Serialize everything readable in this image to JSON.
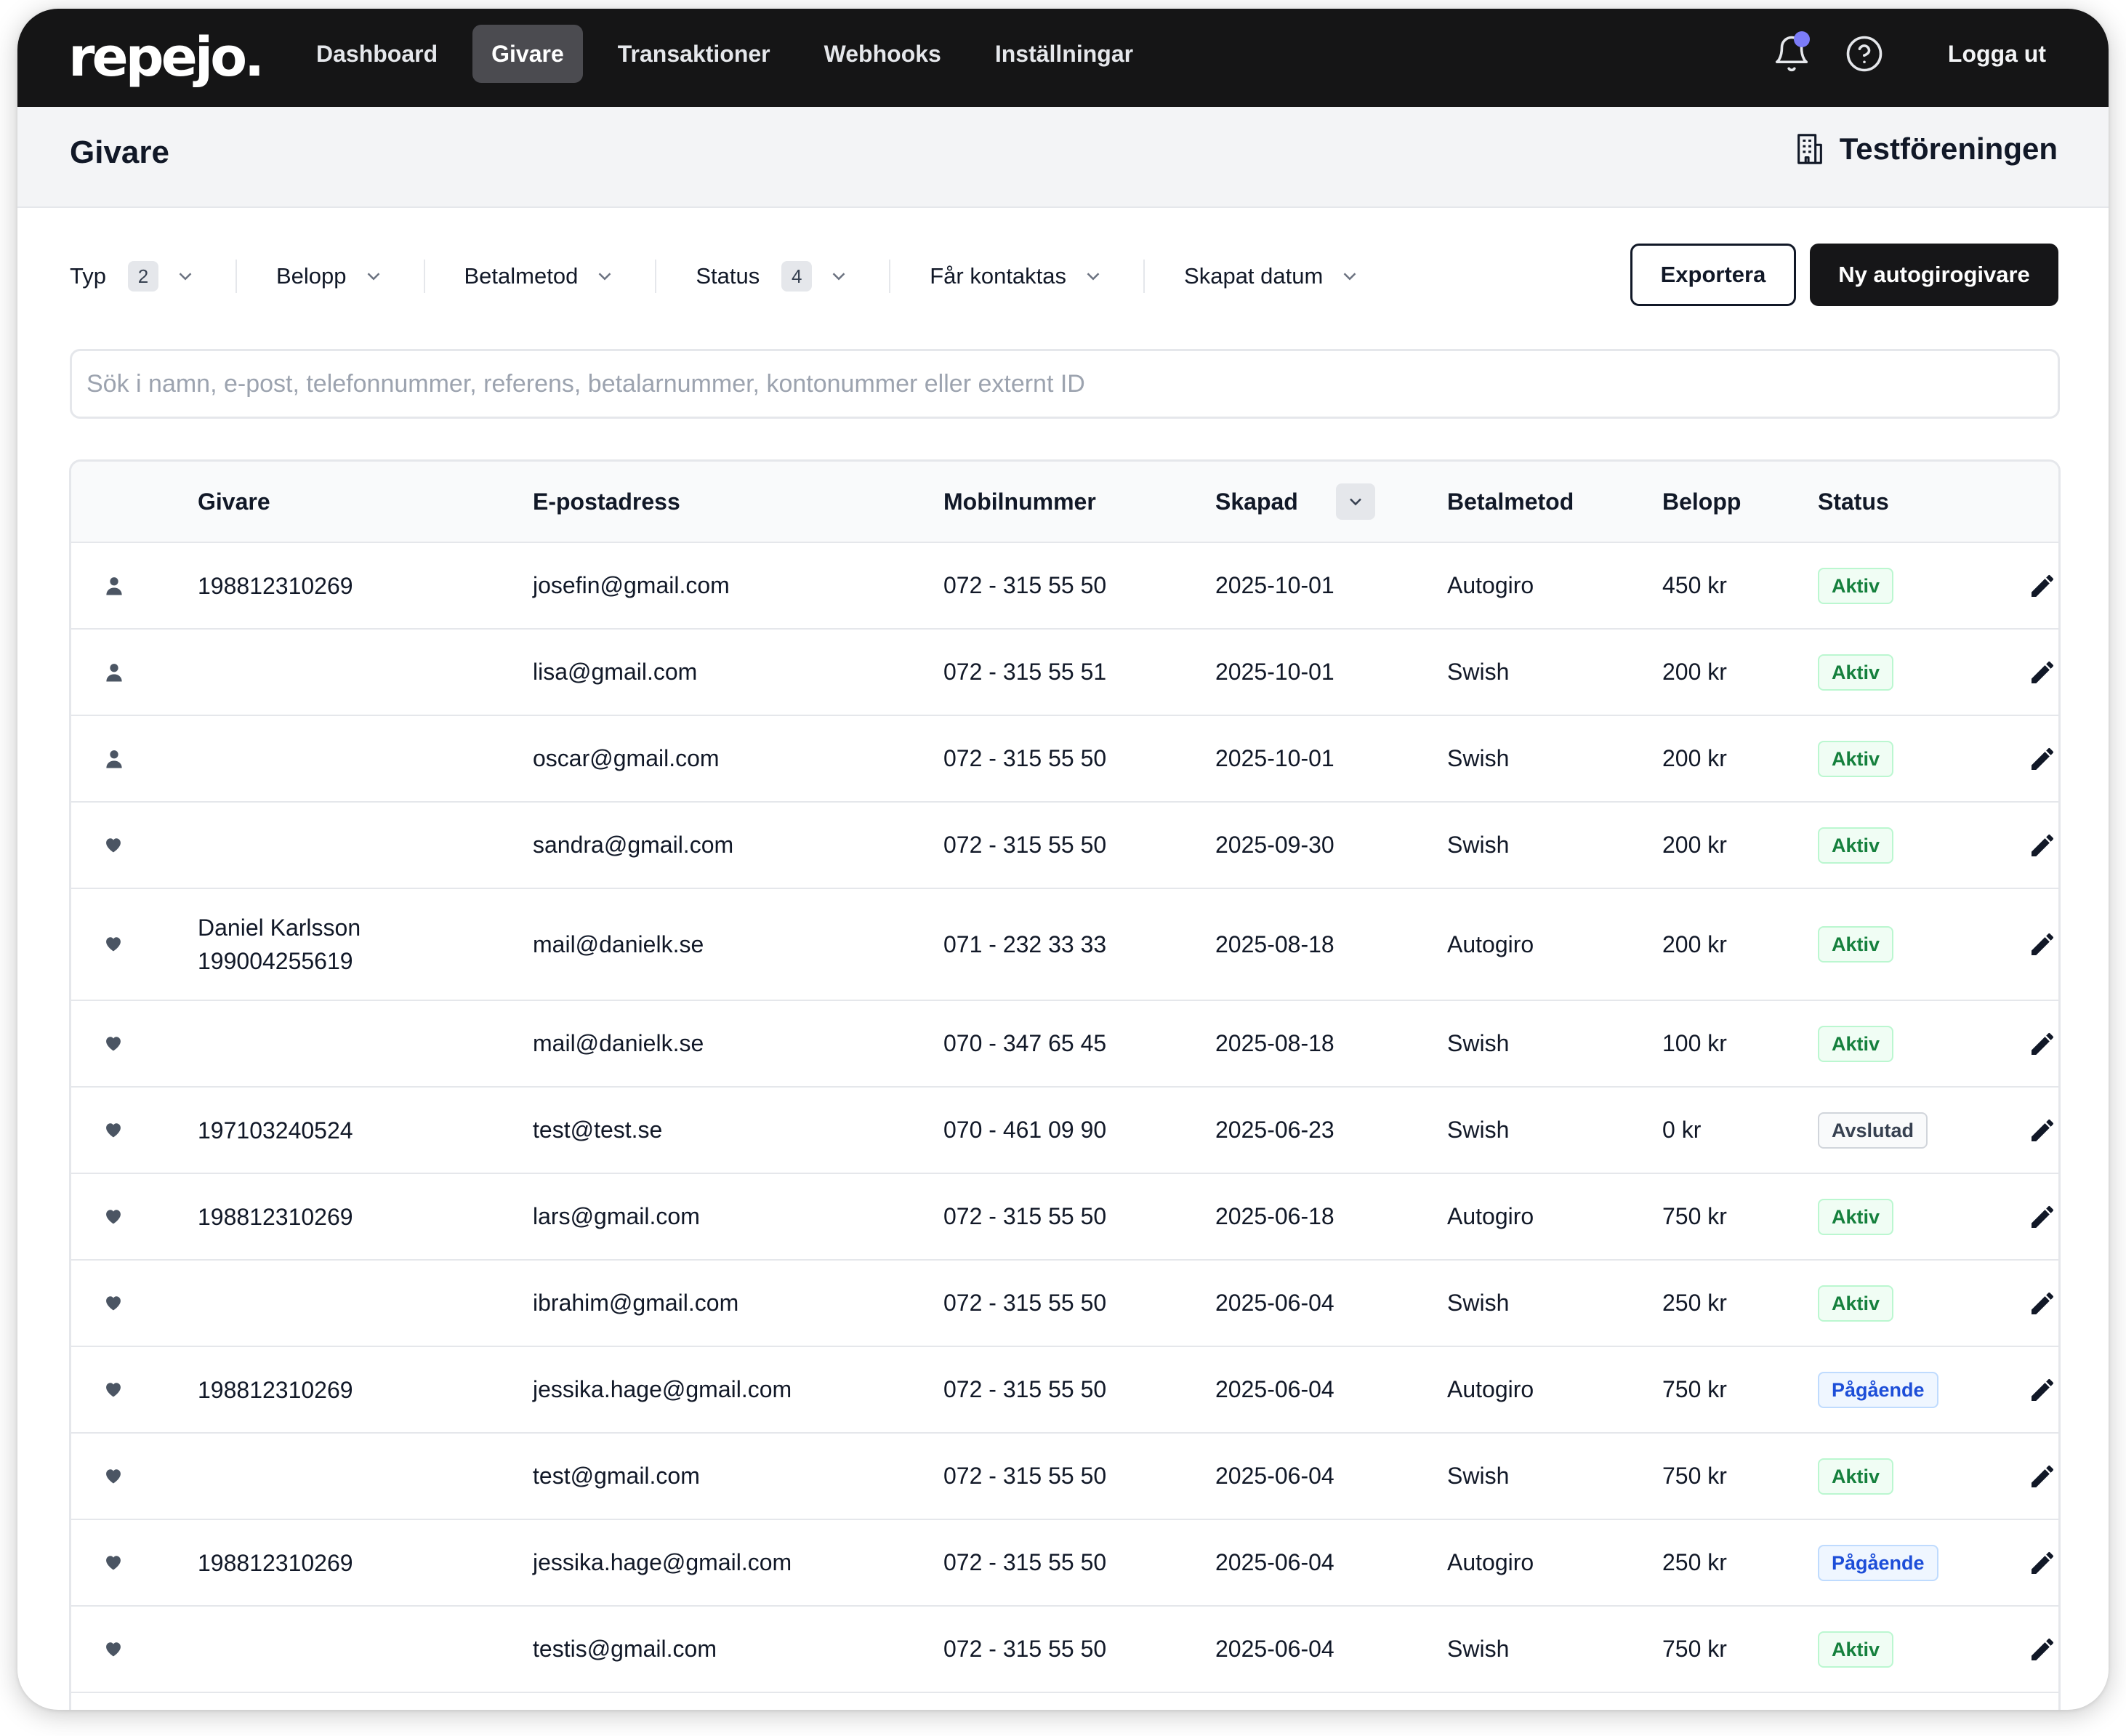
{
  "nav": {
    "logo": "repejo.",
    "items": [
      {
        "label": "Dashboard",
        "active": false
      },
      {
        "label": "Givare",
        "active": true
      },
      {
        "label": "Transaktioner",
        "active": false
      },
      {
        "label": "Webhooks",
        "active": false
      },
      {
        "label": "Inställningar",
        "active": false
      }
    ],
    "logout": "Logga ut",
    "notification_dot_color": "#7c7cf8"
  },
  "header": {
    "title": "Givare",
    "organization": "Testföreningen"
  },
  "filters": [
    {
      "label": "Typ",
      "count": "2"
    },
    {
      "label": "Belopp",
      "count": null
    },
    {
      "label": "Betalmetod",
      "count": null
    },
    {
      "label": "Status",
      "count": "4"
    },
    {
      "label": "Får kontaktas",
      "count": null
    },
    {
      "label": "Skapat datum",
      "count": null
    }
  ],
  "actions": {
    "export": "Exportera",
    "new": "Ny autogirogivare"
  },
  "search": {
    "placeholder": "Sök i namn, e-post, telefonnummer, referens, betalarnummer, kontonummer eller externt ID",
    "value": ""
  },
  "table": {
    "columns": {
      "givare": "Givare",
      "email": "E-postadress",
      "mobile": "Mobilnummer",
      "created": "Skapad",
      "method": "Betalmetod",
      "amount": "Belopp",
      "status": "Status"
    },
    "rows": [
      {
        "type_icon": "person-icon",
        "name": "",
        "id": "198812310269",
        "email": "josefin@gmail.com",
        "mobile": "072 - 315 55 50",
        "created": "2025-10-01",
        "method": "Autogiro",
        "amount": "450 kr",
        "status": "Aktiv",
        "status_kind": "active"
      },
      {
        "type_icon": "person-icon",
        "name": "",
        "id": "",
        "email": "lisa@gmail.com",
        "mobile": "072 - 315 55 51",
        "created": "2025-10-01",
        "method": "Swish",
        "amount": "200 kr",
        "status": "Aktiv",
        "status_kind": "active"
      },
      {
        "type_icon": "person-icon",
        "name": "",
        "id": "",
        "email": "oscar@gmail.com",
        "mobile": "072 - 315 55 50",
        "created": "2025-10-01",
        "method": "Swish",
        "amount": "200 kr",
        "status": "Aktiv",
        "status_kind": "active"
      },
      {
        "type_icon": "heart-icon",
        "name": "",
        "id": "",
        "email": "sandra@gmail.com",
        "mobile": "072 - 315 55 50",
        "created": "2025-09-30",
        "method": "Swish",
        "amount": "200 kr",
        "status": "Aktiv",
        "status_kind": "active"
      },
      {
        "type_icon": "heart-icon",
        "name": "Daniel Karlsson",
        "id": "199004255619",
        "email": "mail@danielk.se",
        "mobile": "071 - 232 33 33",
        "created": "2025-08-18",
        "method": "Autogiro",
        "amount": "200 kr",
        "status": "Aktiv",
        "status_kind": "active"
      },
      {
        "type_icon": "heart-icon",
        "name": "",
        "id": "",
        "email": "mail@danielk.se",
        "mobile": "070 - 347 65 45",
        "created": "2025-08-18",
        "method": "Swish",
        "amount": "100 kr",
        "status": "Aktiv",
        "status_kind": "active"
      },
      {
        "type_icon": "heart-icon",
        "name": "",
        "id": "197103240524",
        "email": "test@test.se",
        "mobile": "070 - 461 09 90",
        "created": "2025-06-23",
        "method": "Swish",
        "amount": "0 kr",
        "status": "Avslutad",
        "status_kind": "ended"
      },
      {
        "type_icon": "heart-icon",
        "name": "",
        "id": "198812310269",
        "email": "lars@gmail.com",
        "mobile": "072 - 315 55 50",
        "created": "2025-06-18",
        "method": "Autogiro",
        "amount": "750 kr",
        "status": "Aktiv",
        "status_kind": "active"
      },
      {
        "type_icon": "heart-icon",
        "name": "",
        "id": "",
        "email": "ibrahim@gmail.com",
        "mobile": "072 - 315 55 50",
        "created": "2025-06-04",
        "method": "Swish",
        "amount": "250 kr",
        "status": "Aktiv",
        "status_kind": "active"
      },
      {
        "type_icon": "heart-icon",
        "name": "",
        "id": "198812310269",
        "email": "jessika.hage@gmail.com",
        "mobile": "072 - 315 55 50",
        "created": "2025-06-04",
        "method": "Autogiro",
        "amount": "750 kr",
        "status": "Pågående",
        "status_kind": "pending"
      },
      {
        "type_icon": "heart-icon",
        "name": "",
        "id": "",
        "email": "test@gmail.com",
        "mobile": "072 - 315 55 50",
        "created": "2025-06-04",
        "method": "Swish",
        "amount": "750 kr",
        "status": "Aktiv",
        "status_kind": "active"
      },
      {
        "type_icon": "heart-icon",
        "name": "",
        "id": "198812310269",
        "email": "jessika.hage@gmail.com",
        "mobile": "072 - 315 55 50",
        "created": "2025-06-04",
        "method": "Autogiro",
        "amount": "250 kr",
        "status": "Pågående",
        "status_kind": "pending"
      },
      {
        "type_icon": "heart-icon",
        "name": "",
        "id": "",
        "email": "testis@gmail.com",
        "mobile": "072 - 315 55 50",
        "created": "2025-06-04",
        "method": "Swish",
        "amount": "750 kr",
        "status": "Aktiv",
        "status_kind": "active"
      }
    ]
  },
  "status_colors": {
    "active": {
      "text": "#15803d",
      "bg": "#f0fdf4",
      "border": "#bbf7d0"
    },
    "pending": {
      "text": "#1d4ed8",
      "bg": "#eff6ff",
      "border": "#bfdbfe"
    },
    "ended": {
      "text": "#374151",
      "bg": "#f9fafb",
      "border": "#d1d5db"
    }
  }
}
